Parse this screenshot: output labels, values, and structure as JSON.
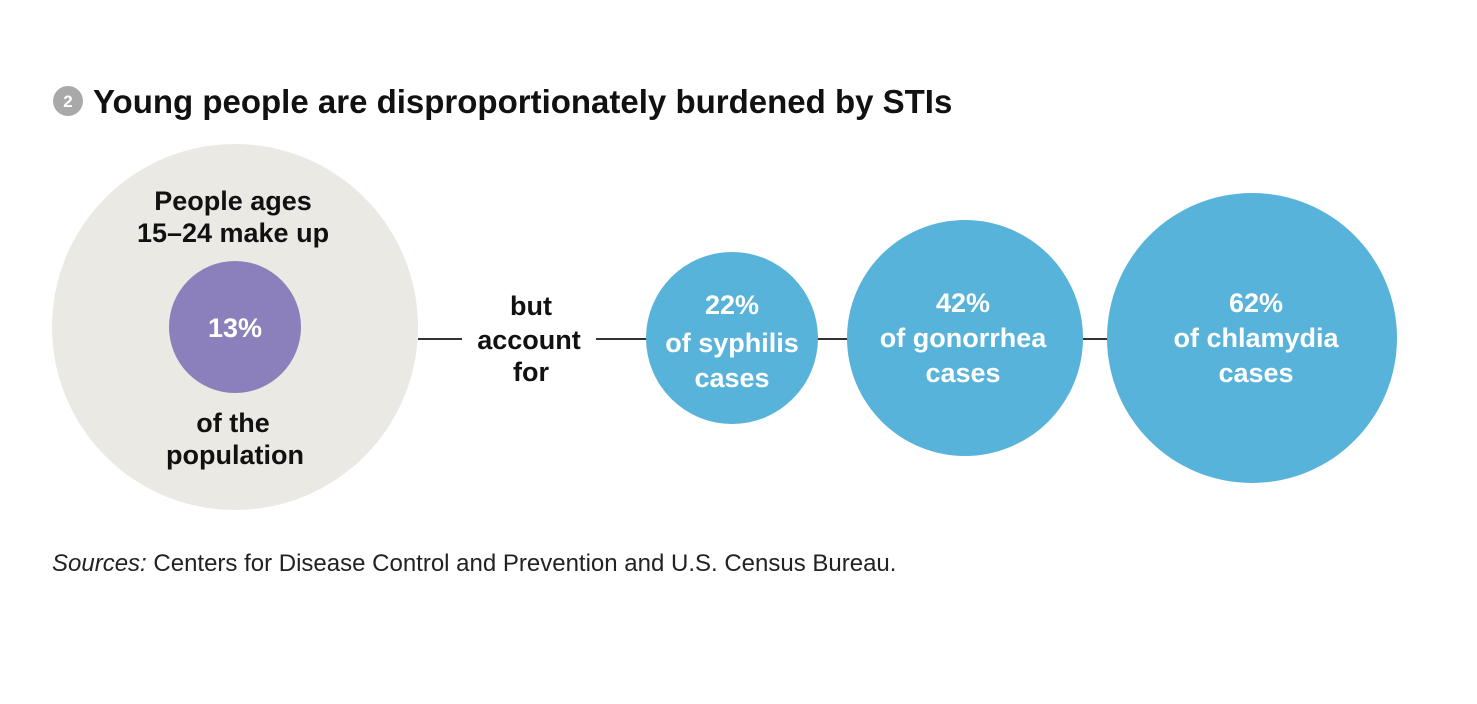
{
  "title": {
    "badge": "2",
    "text": "Young people are disproportionately burdened by STIs"
  },
  "chart_data": {
    "type": "bubble",
    "population": {
      "label_top": [
        "People ages",
        "15–24 make up"
      ],
      "value": 13,
      "value_label": "13%",
      "label_bottom": [
        "of the",
        "population"
      ]
    },
    "connector_text": [
      "but",
      "account",
      "for"
    ],
    "categories": [
      "syphilis",
      "gonorrhea",
      "chlamydia"
    ],
    "values": [
      22,
      42,
      62
    ],
    "bubbles": [
      {
        "name": "syphilis",
        "value": 22,
        "lines": [
          "22%",
          "of syphilis",
          "cases"
        ]
      },
      {
        "name": "gonorrhea",
        "value": 42,
        "lines": [
          "42%",
          "of gonorrhea",
          "cases"
        ]
      },
      {
        "name": "chlamydia",
        "value": 62,
        "lines": [
          "62%",
          "of chlamydia",
          "cases"
        ]
      }
    ]
  },
  "source": {
    "lead": "Sources:",
    "text": " Centers for Disease Control and Prevention and U.S. Census Bureau."
  },
  "colors": {
    "background": "#ffffff",
    "population_circle": "#ebe9e4",
    "population_inner": "#8b80bb",
    "bubble": "#58b3da",
    "connector": "#333333",
    "badge": "#a9a9a9",
    "text_dark": "#111111",
    "text_light": "#ffffff"
  }
}
